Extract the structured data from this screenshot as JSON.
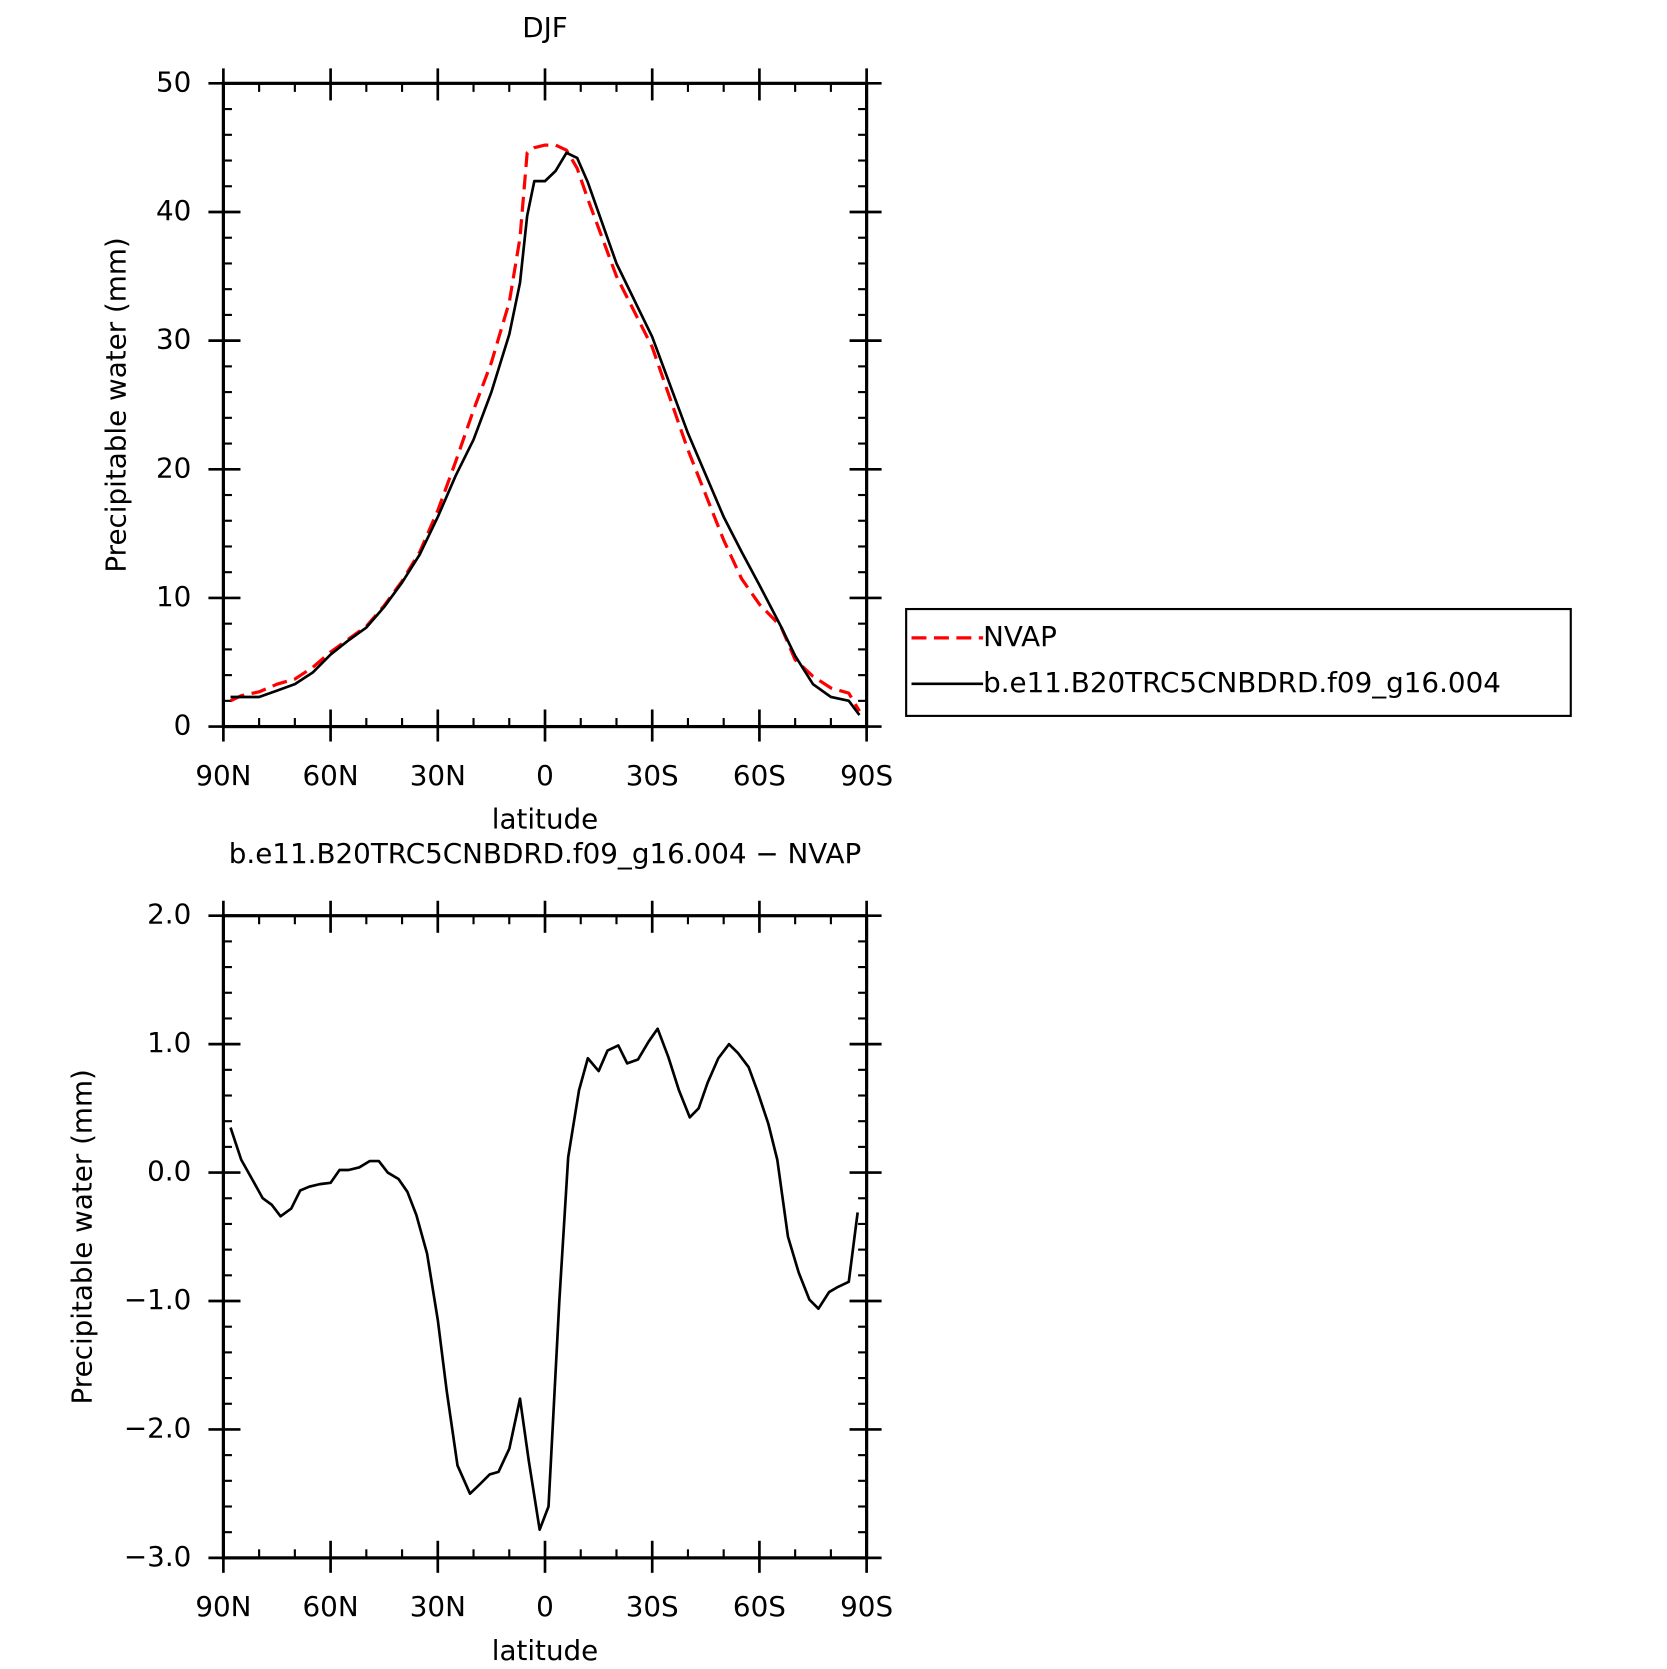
{
  "chart_data": [
    {
      "type": "line",
      "title": "DJF",
      "x_label": "latitude",
      "y_label": "Precipitable water (mm)",
      "x": [
        88,
        85,
        80,
        75,
        70,
        65,
        60,
        55,
        50,
        45,
        40,
        35,
        30,
        25,
        20,
        15,
        10,
        7,
        5,
        3,
        0,
        -3,
        -6,
        -9,
        -12,
        -20,
        -30,
        -40,
        -50,
        -55,
        -60,
        -66,
        -70,
        -75,
        -80,
        -85,
        -88
      ],
      "series": [
        {
          "name": "NVAP",
          "color": "#ff0000",
          "linestyle": "dashed",
          "values": [
            2.0,
            2.4,
            2.7,
            3.3,
            3.7,
            4.6,
            5.8,
            6.8,
            7.8,
            9.4,
            11.3,
            13.6,
            16.8,
            20.6,
            24.6,
            28.3,
            33,
            38,
            44.6,
            45,
            45.2,
            45.2,
            44.8,
            43.4,
            41,
            35,
            29.5,
            21.5,
            14.5,
            11.5,
            9.5,
            7.8,
            5.2,
            3.9,
            3.0,
            2.6,
            1.2
          ]
        },
        {
          "name": "b.e11.B20TRC5CNBDRD.f09_g16.004",
          "color": "#000000",
          "linestyle": "solid",
          "values": [
            2.3,
            2.3,
            2.3,
            2.8,
            3.3,
            4.2,
            5.6,
            6.7,
            7.7,
            9.3,
            11.2,
            13.4,
            16.3,
            19.5,
            22.3,
            26,
            30.5,
            34.5,
            39.7,
            42.4,
            42.4,
            43.2,
            44.6,
            44.2,
            42.3,
            36,
            30.3,
            22.8,
            16.3,
            13.6,
            11,
            7.8,
            5.5,
            3.3,
            2.3,
            2.0,
            0.9
          ]
        }
      ],
      "xlim": [
        90,
        -90
      ],
      "xticks": [
        {
          "value": 90,
          "label": "90N"
        },
        {
          "value": 60,
          "label": "60N"
        },
        {
          "value": 30,
          "label": "30N"
        },
        0,
        {
          "value": -30,
          "label": "30S"
        },
        {
          "value": -60,
          "label": "60S"
        },
        {
          "value": -90,
          "label": "90S"
        }
      ],
      "ylim": [
        0,
        50
      ],
      "yticks": [
        0,
        10,
        20,
        30,
        40,
        50
      ],
      "legend": "right"
    },
    {
      "type": "line",
      "title": "b.e11.B20TRC5CNBDRD.f09_g16.004 − NVAP",
      "x_label": "latitude",
      "y_label": "Precipitable water (mm)",
      "x": [
        88,
        85,
        82,
        79,
        76.5,
        74,
        71,
        68.5,
        66,
        63,
        60,
        57.5,
        55,
        52,
        49,
        46.5,
        44,
        41,
        38.5,
        36,
        33,
        30,
        27.5,
        24.5,
        21,
        18,
        15.5,
        13,
        10,
        7,
        4.5,
        1.5,
        -1,
        -4,
        -6.5,
        -9.5,
        -12,
        -15,
        -17.5,
        -20.5,
        -23,
        -26,
        -29,
        -31.5,
        -34.5,
        -37.5,
        -40.5,
        -43,
        -45.5,
        -48.5,
        -51.5,
        -54,
        -57,
        -59.5,
        -62.5,
        -65,
        -68,
        -71,
        -74,
        -76.5,
        -79.5,
        -82,
        -85,
        -87.5
      ],
      "series": [
        {
          "color": "#000000",
          "linestyle": "solid",
          "values": [
            0.35,
            0.1,
            -0.05,
            -0.2,
            -0.25,
            -0.34,
            -0.28,
            -0.14,
            -0.11,
            -0.09,
            -0.08,
            0.02,
            0.02,
            0.04,
            0.09,
            0.09,
            0.0,
            -0.05,
            -0.15,
            -0.33,
            -0.63,
            -1.15,
            -1.7,
            -2.28,
            -2.5,
            -2.42,
            -2.35,
            -2.33,
            -2.15,
            -1.76,
            -2.25,
            -2.78,
            -2.6,
            -1.0,
            0.12,
            0.64,
            0.89,
            0.79,
            0.95,
            0.99,
            0.85,
            0.88,
            1.02,
            1.12,
            0.9,
            0.64,
            0.43,
            0.5,
            0.7,
            0.89,
            1.0,
            0.93,
            0.82,
            0.63,
            0.38,
            0.1,
            -0.5,
            -0.78,
            -0.99,
            -1.06,
            -0.93,
            -0.89,
            -0.85,
            -0.31
          ]
        }
      ],
      "xlim": [
        90,
        -90
      ],
      "xticks": [
        {
          "value": 90,
          "label": "90N"
        },
        {
          "value": 60,
          "label": "60N"
        },
        {
          "value": 30,
          "label": "30N"
        },
        0,
        {
          "value": -30,
          "label": "30S"
        },
        {
          "value": -60,
          "label": "60S"
        },
        {
          "value": -90,
          "label": "90S"
        }
      ],
      "ylim": [
        -3,
        2
      ],
      "yticks": [
        {
          "value": -3,
          "label": "−3.0"
        },
        {
          "value": -2,
          "label": "−2.0"
        },
        {
          "value": -1,
          "label": "−1.0"
        },
        {
          "value": 0,
          "label": "0.0"
        },
        {
          "value": 1,
          "label": "1.0"
        },
        {
          "value": 2,
          "label": "2.0"
        }
      ]
    }
  ]
}
